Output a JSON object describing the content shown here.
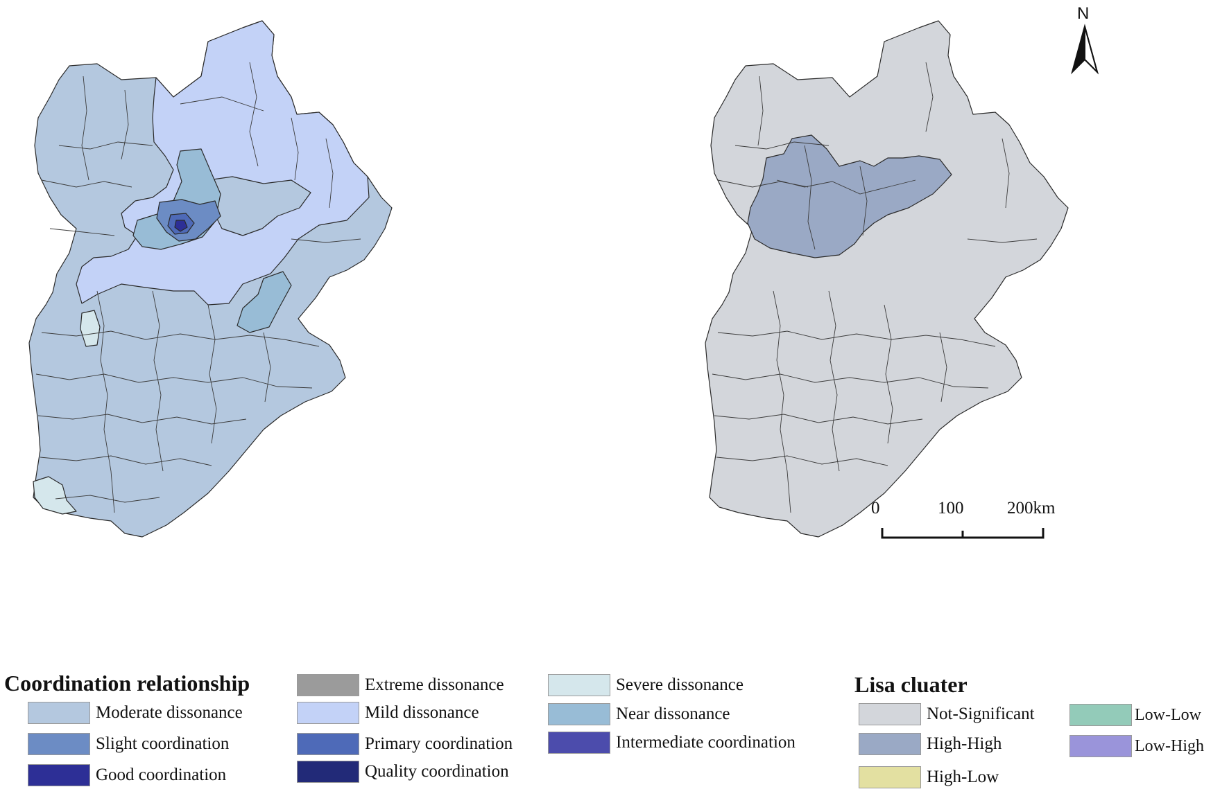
{
  "coordination_legend": {
    "title": "Coordination relationship",
    "items": [
      {
        "label": "Moderate dissonance",
        "color": "#b4c8df"
      },
      {
        "label": "Slight coordination",
        "color": "#6c8cc4"
      },
      {
        "label": "Good coordination",
        "color": "#2d2f96"
      },
      {
        "label": "Extreme  dissonance",
        "color": "#9b9b9b"
      },
      {
        "label": "Mild dissonance",
        "color": "#c3d2f7"
      },
      {
        "label": "Primary  coordination",
        "color": "#4e6ab8"
      },
      {
        "label": "Quality coordination",
        "color": "#222a78"
      },
      {
        "label": "Severe dissonance",
        "color": "#d5e7ec"
      },
      {
        "label": "Near dissonance",
        "color": "#98bcd6"
      },
      {
        "label": "Intermediate coordination",
        "color": "#4c4cac"
      }
    ]
  },
  "lisa_legend": {
    "title": "Lisa cluater",
    "items": [
      {
        "label": "Not-Significant",
        "color": "#d3d6db"
      },
      {
        "label": "High-High",
        "color": "#9aa9c5"
      },
      {
        "label": "High-Low",
        "color": "#e3e0a1"
      },
      {
        "label": "Low-Low",
        "color": "#93cbb9"
      },
      {
        "label": "Low-High",
        "color": "#9a94da"
      }
    ]
  },
  "scale_bar": {
    "ticks": [
      "0",
      "100",
      "200km"
    ]
  },
  "north_arrow": {
    "label": "N"
  },
  "icons": {
    "north": "north-arrow-icon"
  }
}
